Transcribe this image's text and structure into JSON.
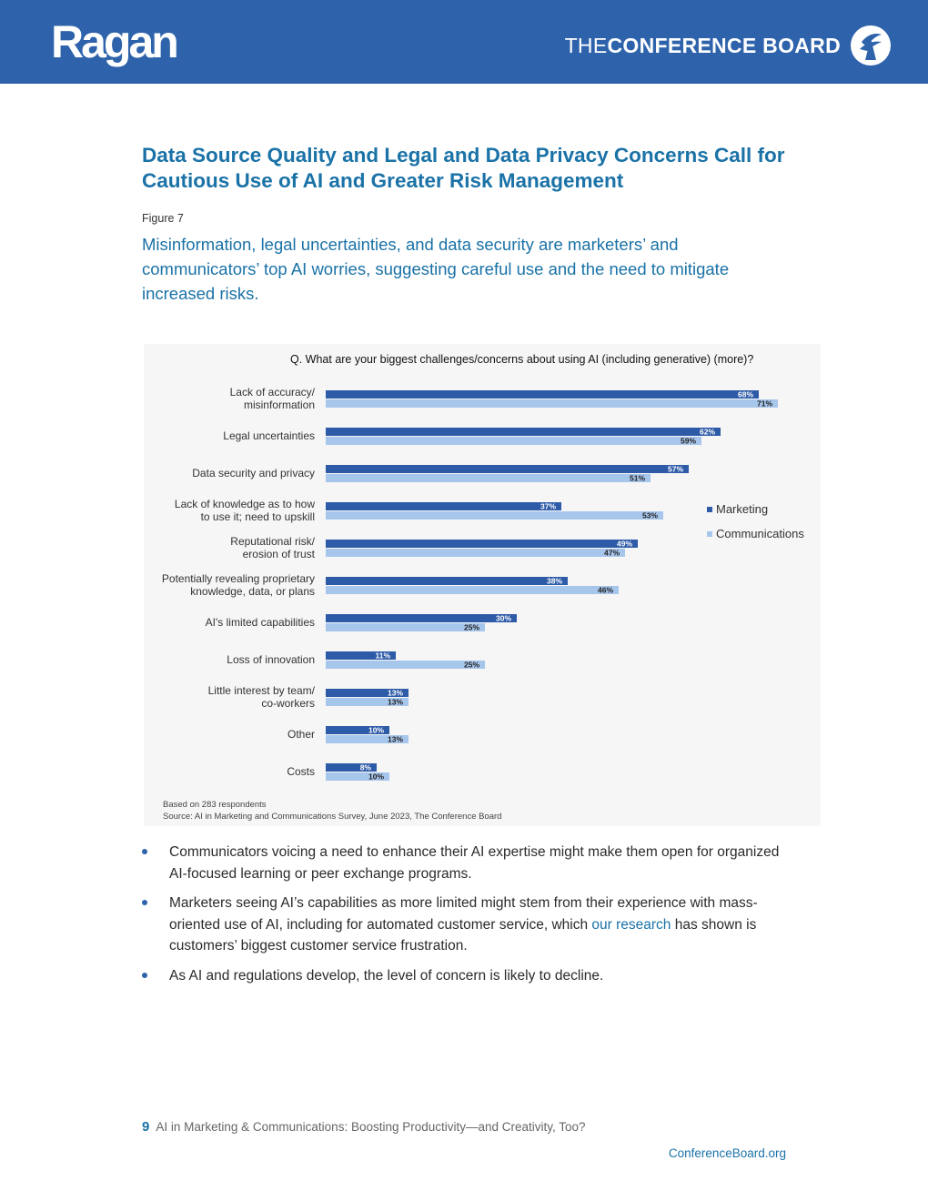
{
  "header": {
    "left_logo": "Ragan",
    "right_logo_prefix": "THE",
    "right_logo_main": "CONFERENCE BOARD",
    "colors": {
      "bar": "#2e63ab"
    }
  },
  "title": "Data Source Quality and Legal and Data Privacy Concerns Call for Cautious Use of AI and Greater Risk Management",
  "figure_label": "Figure 7",
  "subtitle": "Misinformation, legal uncertainties, and data security are marketers’ and communicators’ top AI worries, suggesting careful use and the need to mitigate increased risks.",
  "chart_data": {
    "type": "bar",
    "orientation": "horizontal",
    "title": "Q.  What are your biggest challenges/concerns about using AI (including generative) (more)?",
    "categories": [
      [
        "Lack of accuracy/",
        "misinformation"
      ],
      [
        "Legal uncertainties"
      ],
      [
        "Data security and privacy"
      ],
      [
        "Lack of knowledge as to how",
        "to use it; need to upskill"
      ],
      [
        "Reputational risk/",
        "erosion of trust"
      ],
      [
        "Potentially revealing proprietary",
        "knowledge, data, or plans"
      ],
      [
        "AI's limited capabilities"
      ],
      [
        "Loss of innovation"
      ],
      [
        "Little interest by team/",
        "co-workers"
      ],
      [
        "Other"
      ],
      [
        "Costs"
      ]
    ],
    "series": [
      {
        "name": "Marketing",
        "color": "#2e5ba8",
        "values": [
          68,
          62,
          57,
          37,
          49,
          38,
          30,
          11,
          13,
          10,
          8
        ]
      },
      {
        "name": "Communications",
        "color": "#a7c6ec",
        "values": [
          71,
          59,
          51,
          53,
          47,
          46,
          25,
          25,
          13,
          13,
          10
        ]
      }
    ],
    "xlim": [
      0,
      100
    ],
    "value_suffix": "%",
    "legend_position": "right",
    "notes": [
      "Based on 283 respondents",
      "Source: AI in Marketing and Communications Survey, June 2023, The Conference Board"
    ]
  },
  "bullets": [
    {
      "text": "Communicators voicing a need to enhance their AI expertise might make them open for organized AI-focused learning or peer exchange programs."
    },
    {
      "before": "Marketers seeing AI’s capabilities as more limited might stem from their experience with mass-oriented use of AI, including for automated customer service, which ",
      "link": "our research",
      "after": " has shown is customers’ biggest customer service frustration."
    },
    {
      "text": "As AI and regulations develop, the level of concern is likely to decline."
    }
  ],
  "footer": {
    "page_number": "9",
    "doc_title": "AI in Marketing & Communications: Boosting Productivity—and Creativity, Too?",
    "url": "ConferenceBoard.org"
  }
}
